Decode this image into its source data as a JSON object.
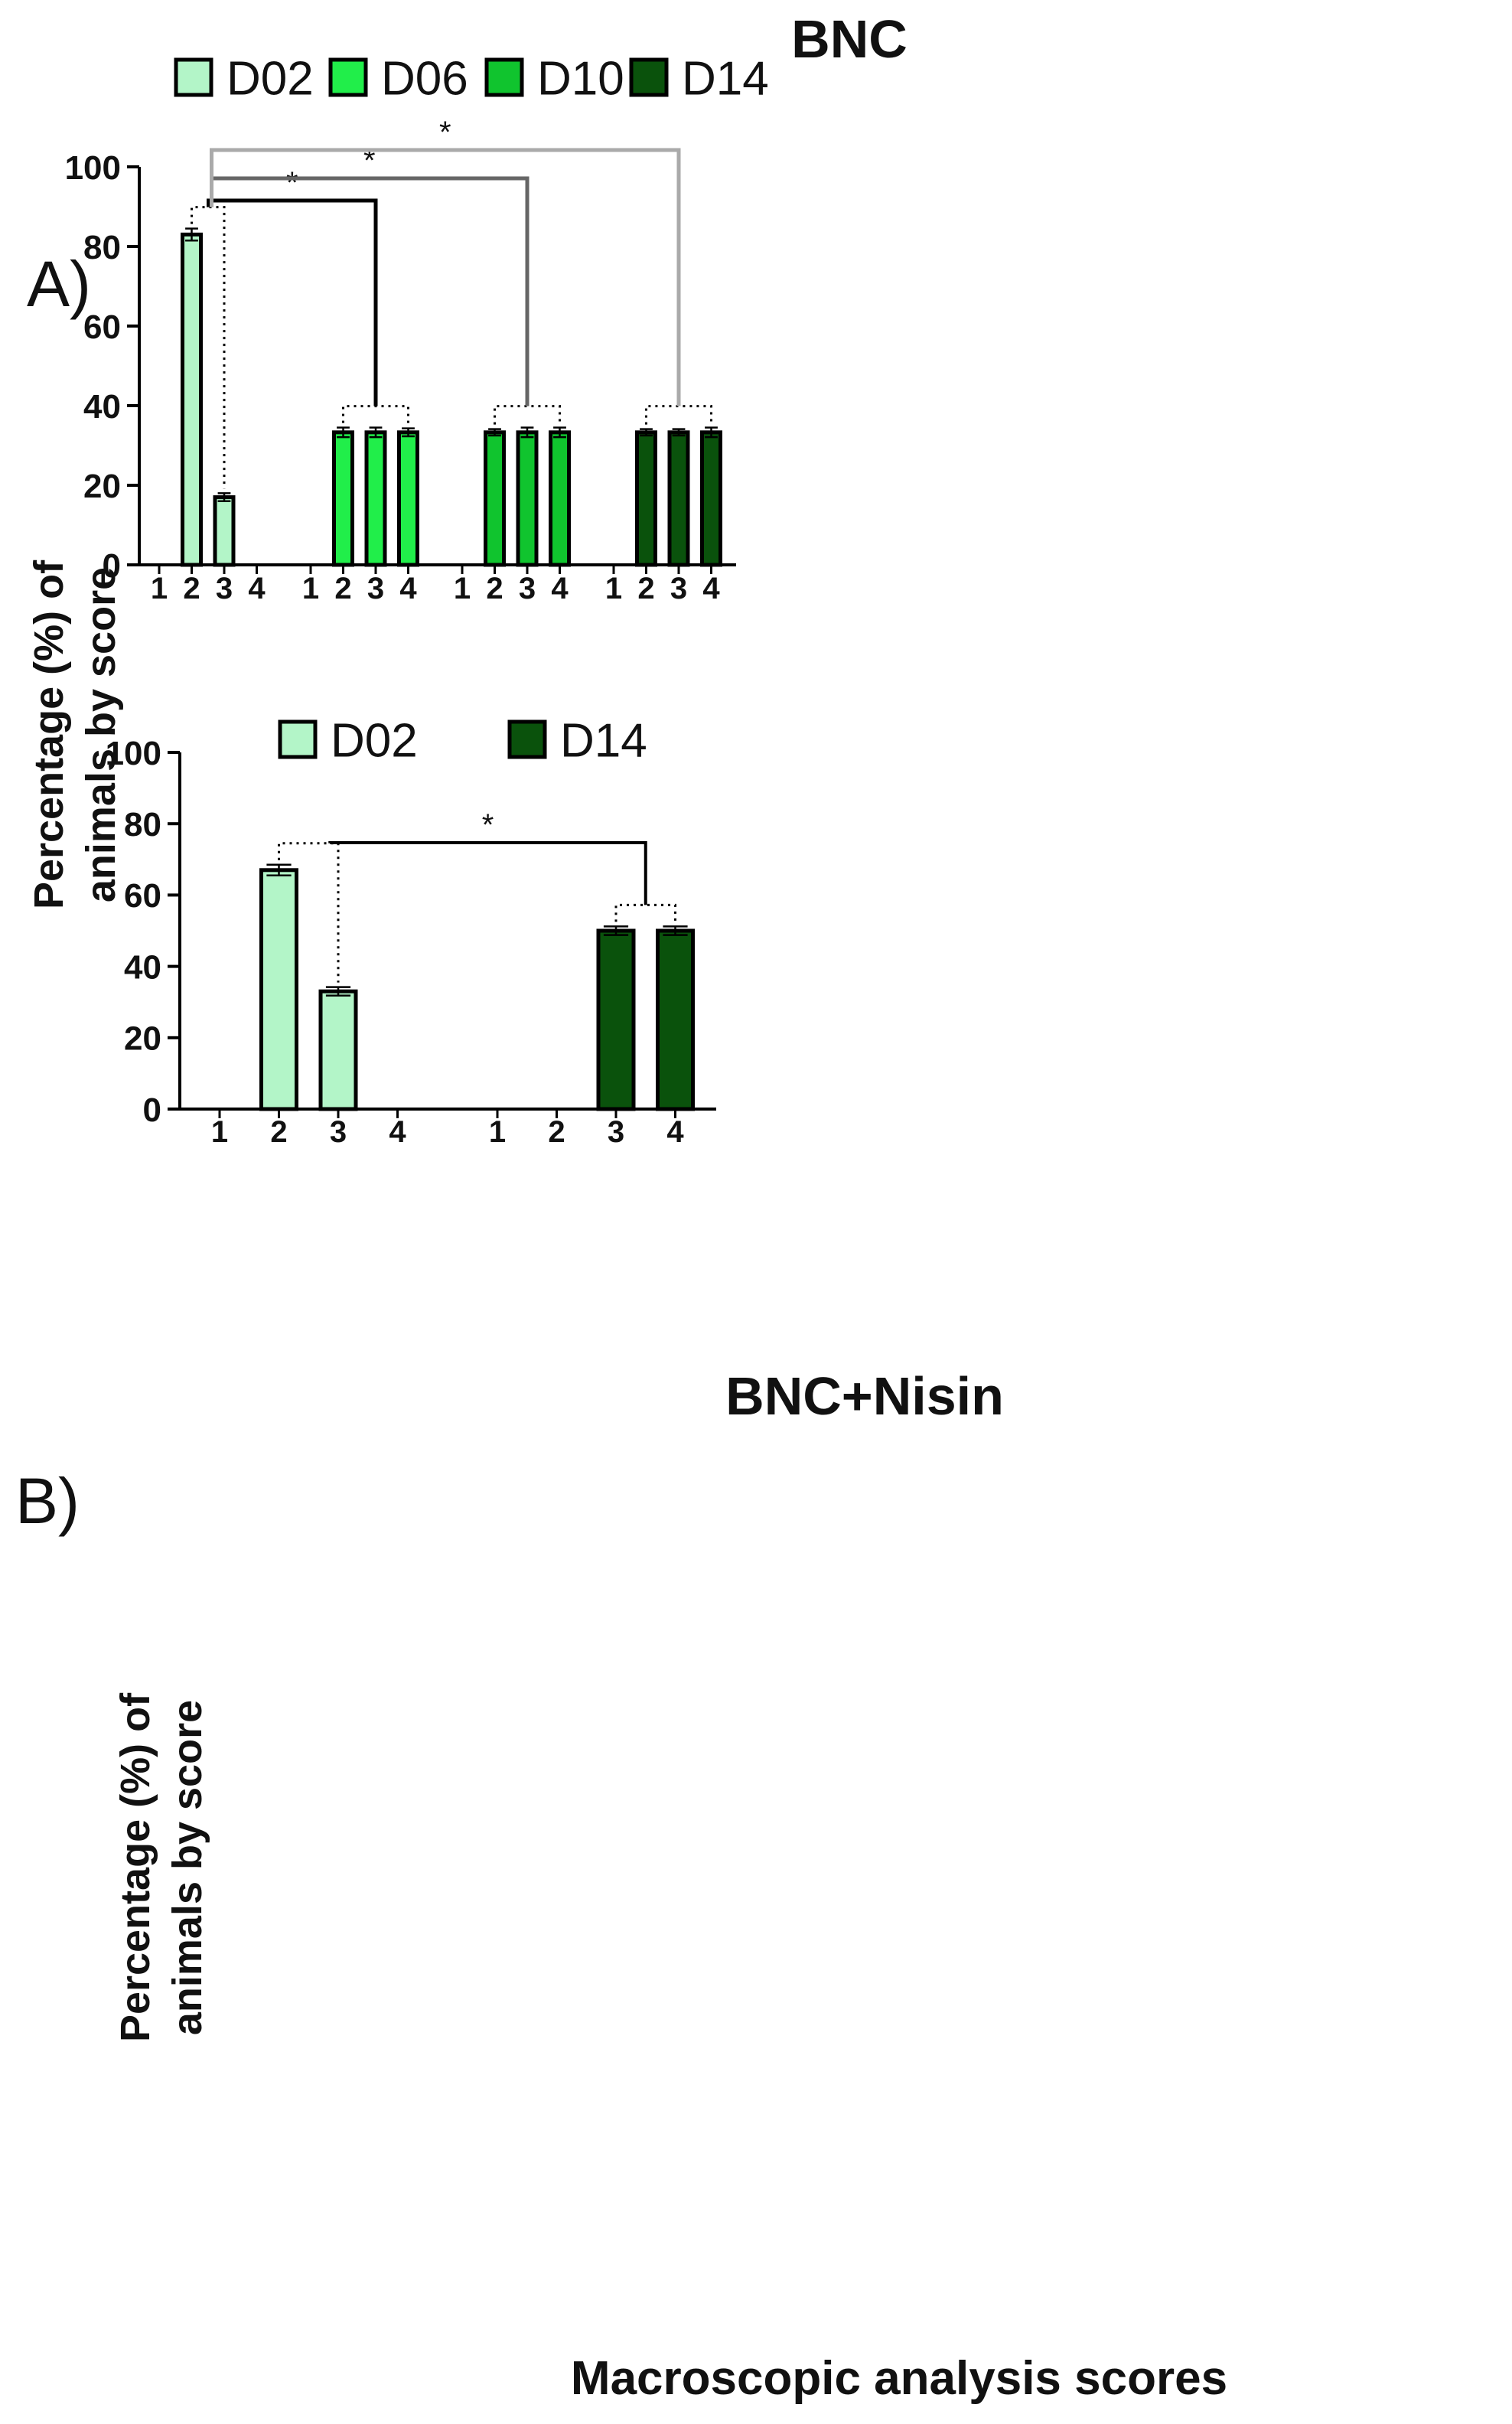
{
  "colors": {
    "D02": "#b3f5c8",
    "D06": "#21ee4a",
    "D10": "#10c42e",
    "D14": "#0a520c",
    "axis": "#000000",
    "bracket_D06": "#000000",
    "bracket_D10": "#666666",
    "bracket_D14": "#aaaaaa"
  },
  "chart_data": [
    {
      "panel_label": "A)",
      "type": "bar",
      "title": "BNC",
      "ylabel_line1": "Percentage (%) of",
      "ylabel_line2": "animals by score",
      "xlabel": "",
      "ylim": [
        0,
        100
      ],
      "yticks": [
        "0",
        "20",
        "40",
        "60",
        "80",
        "100"
      ],
      "legend": [
        "D02",
        "D06",
        "D10",
        "D14"
      ],
      "groups": [
        {
          "name": "D02",
          "categories": [
            "1",
            "2",
            "3",
            "4"
          ],
          "values": [
            0,
            83,
            17,
            0
          ],
          "errors": [
            0,
            1.5,
            1,
            0
          ]
        },
        {
          "name": "D06",
          "categories": [
            "1",
            "2",
            "3",
            "4"
          ],
          "values": [
            0,
            33.3,
            33.3,
            33.3
          ],
          "errors": [
            0,
            1.2,
            1.2,
            1
          ]
        },
        {
          "name": "D10",
          "categories": [
            "1",
            "2",
            "3",
            "4"
          ],
          "values": [
            0,
            33.3,
            33.3,
            33.3
          ],
          "errors": [
            0,
            0.8,
            1.2,
            1.2
          ]
        },
        {
          "name": "D14",
          "categories": [
            "1",
            "2",
            "3",
            "4"
          ],
          "values": [
            0,
            33.3,
            33.3,
            33.3
          ],
          "errors": [
            0,
            0.8,
            0.8,
            1.2
          ]
        }
      ],
      "significance": [
        {
          "from": "D02",
          "to": "D06",
          "label": "*"
        },
        {
          "from": "D02",
          "to": "D10",
          "label": "*"
        },
        {
          "from": "D02",
          "to": "D14",
          "label": "*"
        }
      ]
    },
    {
      "panel_label": "B)",
      "type": "bar",
      "title": "BNC+Nisin",
      "ylabel_line1": "Percentage (%) of",
      "ylabel_line2": "animals by score",
      "xlabel": "Macroscopic analysis scores",
      "ylim": [
        0,
        100
      ],
      "yticks": [
        "0",
        "20",
        "40",
        "60",
        "80",
        "100"
      ],
      "legend": [
        "D02",
        "D14"
      ],
      "groups": [
        {
          "name": "D02",
          "categories": [
            "1",
            "2",
            "3",
            "4"
          ],
          "values": [
            0,
            67,
            33,
            0
          ],
          "errors": [
            0,
            1.5,
            1.2,
            0
          ]
        },
        {
          "name": "D14",
          "categories": [
            "1",
            "2",
            "3",
            "4"
          ],
          "values": [
            0,
            0,
            50,
            50
          ],
          "errors": [
            0,
            0,
            1.2,
            1.2
          ]
        }
      ],
      "significance": [
        {
          "from": "D02",
          "to": "D14",
          "label": "*"
        }
      ]
    }
  ]
}
